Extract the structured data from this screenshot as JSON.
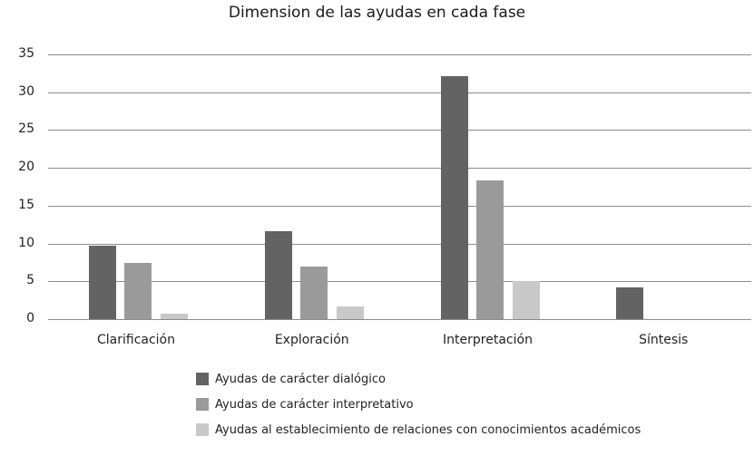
{
  "chart_data": {
    "type": "bar",
    "title": "Dimension de las ayudas en cada fase",
    "xlabel": "",
    "ylabel": "",
    "ylim": [
      0,
      35
    ],
    "yticks": [
      0,
      5,
      10,
      15,
      20,
      25,
      30,
      35
    ],
    "grid": true,
    "legend_position": "bottom",
    "categories": [
      "Clarificación",
      "Exploración",
      "Interpretación",
      "Síntesis"
    ],
    "series": [
      {
        "name": "Ayudas de carácter dialógico",
        "color": "#636363",
        "values": [
          9.7,
          11.6,
          32.1,
          4.2
        ]
      },
      {
        "name": "Ayudas de carácter interpretativo",
        "color": "#9a9a9a",
        "values": [
          7.4,
          6.9,
          18.3,
          0
        ]
      },
      {
        "name": "Ayudas al establecimiento de relaciones con conocimientos académicos",
        "color": "#c8c8c8",
        "values": [
          0.7,
          1.7,
          5.0,
          0
        ]
      }
    ]
  }
}
